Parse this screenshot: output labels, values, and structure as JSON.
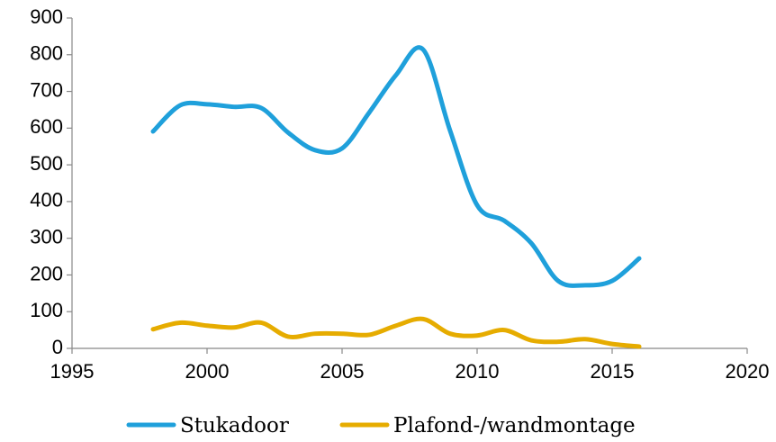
{
  "chart_data": {
    "type": "line",
    "x": [
      1998,
      1999,
      2000,
      2001,
      2002,
      2003,
      2004,
      2005,
      2006,
      2007,
      2008,
      2009,
      2010,
      2011,
      2012,
      2013,
      2014,
      2015,
      2016
    ],
    "series": [
      {
        "name": "Stukadoor",
        "color": "#1fa0db",
        "values": [
          591,
          662,
          665,
          658,
          655,
          588,
          540,
          545,
          642,
          745,
          814,
          593,
          390,
          348,
          287,
          184,
          172,
          184,
          245
        ]
      },
      {
        "name": "Plafond-/wandmontage",
        "color": "#e6ac00",
        "values": [
          52,
          70,
          62,
          57,
          70,
          32,
          40,
          40,
          37,
          62,
          80,
          40,
          35,
          50,
          22,
          18,
          25,
          12,
          5
        ]
      }
    ],
    "xlim": [
      1995,
      2020
    ],
    "xticks": [
      1995,
      2000,
      2005,
      2010,
      2015,
      2020
    ],
    "ylim": [
      0,
      900
    ],
    "yticks": [
      0,
      100,
      200,
      300,
      400,
      500,
      600,
      700,
      800,
      900
    ],
    "legend": "bottom",
    "grid": false
  }
}
